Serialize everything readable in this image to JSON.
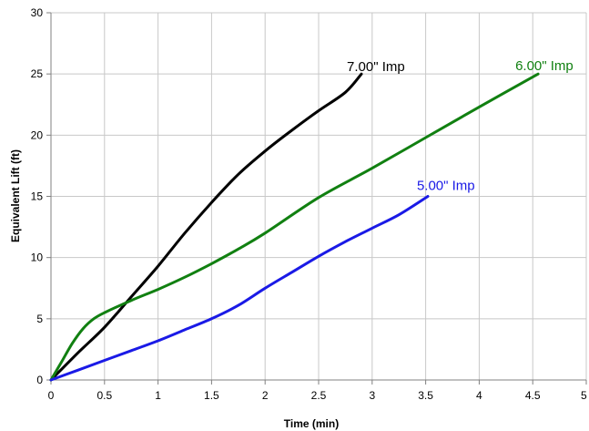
{
  "chart_data": {
    "type": "line",
    "xlabel": "Time (min)",
    "ylabel": "Equivalent Lift (ft)",
    "xlim": [
      0,
      5
    ],
    "ylim": [
      0,
      30
    ],
    "x_ticks": [
      0,
      0.5,
      1,
      1.5,
      2,
      2.5,
      3,
      3.5,
      4,
      4.5,
      5
    ],
    "y_ticks": [
      0,
      5,
      10,
      15,
      20,
      25,
      30
    ],
    "grid": true,
    "legend": "inline-labels",
    "series": [
      {
        "name": "7.00\" Imp",
        "color": "#000000",
        "points": [
          [
            0,
            0
          ],
          [
            0.25,
            2.2
          ],
          [
            0.5,
            4.3
          ],
          [
            0.75,
            6.8
          ],
          [
            1,
            9.3
          ],
          [
            1.25,
            12
          ],
          [
            1.5,
            14.5
          ],
          [
            1.75,
            16.8
          ],
          [
            2,
            18.7
          ],
          [
            2.25,
            20.4
          ],
          [
            2.5,
            22
          ],
          [
            2.75,
            23.5
          ],
          [
            2.9,
            25
          ]
        ]
      },
      {
        "name": "6.00\" Imp",
        "color": "#118011",
        "points": [
          [
            0,
            0
          ],
          [
            0.1,
            1.5
          ],
          [
            0.2,
            3
          ],
          [
            0.3,
            4.2
          ],
          [
            0.4,
            5
          ],
          [
            0.5,
            5.5
          ],
          [
            0.75,
            6.5
          ],
          [
            1,
            7.4
          ],
          [
            1.25,
            8.4
          ],
          [
            1.5,
            9.5
          ],
          [
            1.75,
            10.7
          ],
          [
            2,
            12
          ],
          [
            2.5,
            14.9
          ],
          [
            3,
            17.3
          ],
          [
            3.5,
            19.8
          ],
          [
            4,
            22.3
          ],
          [
            4.55,
            25
          ]
        ]
      },
      {
        "name": "5.00\" Imp",
        "color": "#1a1ae6",
        "points": [
          [
            0,
            0
          ],
          [
            0.25,
            0.8
          ],
          [
            0.5,
            1.6
          ],
          [
            0.75,
            2.4
          ],
          [
            1,
            3.2
          ],
          [
            1.25,
            4.1
          ],
          [
            1.5,
            5
          ],
          [
            1.75,
            6.1
          ],
          [
            2,
            7.5
          ],
          [
            2.25,
            8.8
          ],
          [
            2.5,
            10.1
          ],
          [
            2.75,
            11.3
          ],
          [
            3,
            12.4
          ],
          [
            3.25,
            13.5
          ],
          [
            3.52,
            15
          ]
        ]
      }
    ]
  }
}
